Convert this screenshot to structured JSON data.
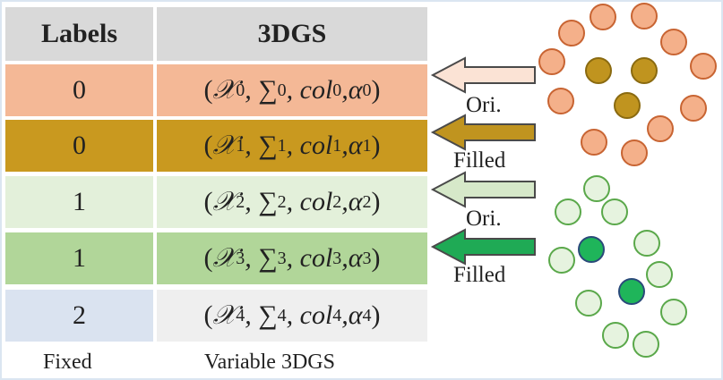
{
  "table": {
    "headers": {
      "labels": "Labels",
      "gs": "3DGS"
    },
    "rows": [
      {
        "label": "0",
        "gs": [
          "(",
          "𝒳",
          "0",
          ", ∑",
          "0",
          ", col",
          "0",
          ",α",
          "0",
          ")"
        ],
        "color": "#f4b896"
      },
      {
        "label": "0",
        "gs": [
          "(",
          "𝒳",
          "1",
          ", ∑",
          "1",
          ", col",
          "1",
          ",α",
          "1",
          ")"
        ],
        "color": "#c9991f"
      },
      {
        "label": "1",
        "gs": [
          "(",
          "𝒳",
          "2",
          ", ∑",
          "2",
          ", col",
          "2",
          ",α",
          "2",
          ")"
        ],
        "color": "#e3f0da"
      },
      {
        "label": "1",
        "gs": [
          "(",
          "𝒳",
          "3",
          ", ∑",
          "3",
          ", col",
          "3",
          ",α",
          "3",
          ")"
        ],
        "color": "#b1d699"
      },
      {
        "label": "2",
        "gs": [
          "(",
          "𝒳",
          "4",
          ", ∑",
          "4",
          ", col",
          "4",
          ",α",
          "4",
          ")"
        ],
        "color": "#dae3f0"
      }
    ],
    "gs_col_bg_last": "#efefef",
    "footer": {
      "left": "Fixed",
      "right": "Variable 3DGS"
    }
  },
  "arrows": [
    {
      "label": "Ori.",
      "fill": "#fbe3d5",
      "stroke": "#4a4a4a"
    },
    {
      "label": "Filled",
      "fill": "#c0941f",
      "stroke": "#4a4a4a"
    },
    {
      "label": "Ori.",
      "fill": "#d6e8c9",
      "stroke": "#4a4a4a"
    },
    {
      "label": "Filled",
      "fill": "#1faa55",
      "stroke": "#4a4a4a"
    }
  ],
  "clusters": {
    "orange_color": "#f4b08a",
    "orange_stroke": "#c86432",
    "gold_color": "#c0941f",
    "gold_stroke": "#8a6a10",
    "green_light_color": "#e6f3df",
    "green_light_stroke": "#5aa84a",
    "green_dark_color": "#1fb55a",
    "green_dark_stroke": "#2a4a7a"
  }
}
